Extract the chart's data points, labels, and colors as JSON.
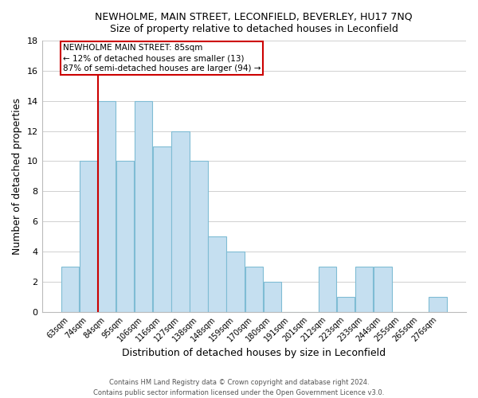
{
  "title": "NEWHOLME, MAIN STREET, LECONFIELD, BEVERLEY, HU17 7NQ",
  "subtitle": "Size of property relative to detached houses in Leconfield",
  "xlabel": "Distribution of detached houses by size in Leconfield",
  "ylabel": "Number of detached properties",
  "footer_line1": "Contains HM Land Registry data © Crown copyright and database right 2024.",
  "footer_line2": "Contains public sector information licensed under the Open Government Licence v3.0.",
  "bar_color": "#c5dff0",
  "bar_edge_color": "#7fbcd4",
  "highlight_line_color": "#cc0000",
  "annotation_box_edge_color": "#cc0000",
  "categories": [
    "63sqm",
    "74sqm",
    "84sqm",
    "95sqm",
    "106sqm",
    "116sqm",
    "127sqm",
    "138sqm",
    "148sqm",
    "159sqm",
    "170sqm",
    "180sqm",
    "191sqm",
    "201sqm",
    "212sqm",
    "223sqm",
    "233sqm",
    "244sqm",
    "255sqm",
    "265sqm",
    "276sqm"
  ],
  "values": [
    3,
    10,
    14,
    10,
    14,
    11,
    12,
    10,
    5,
    4,
    3,
    2,
    0,
    0,
    3,
    1,
    3,
    3,
    0,
    0,
    1
  ],
  "highlight_index": 2,
  "annotation_line1": "NEWHOLME MAIN STREET: 85sqm",
  "annotation_line2": "← 12% of detached houses are smaller (13)",
  "annotation_line3": "87% of semi-detached houses are larger (94) →",
  "ylim": [
    0,
    18
  ],
  "yticks": [
    0,
    2,
    4,
    6,
    8,
    10,
    12,
    14,
    16,
    18
  ],
  "background_color": "#ffffff",
  "grid_color": "#d0d0d0"
}
